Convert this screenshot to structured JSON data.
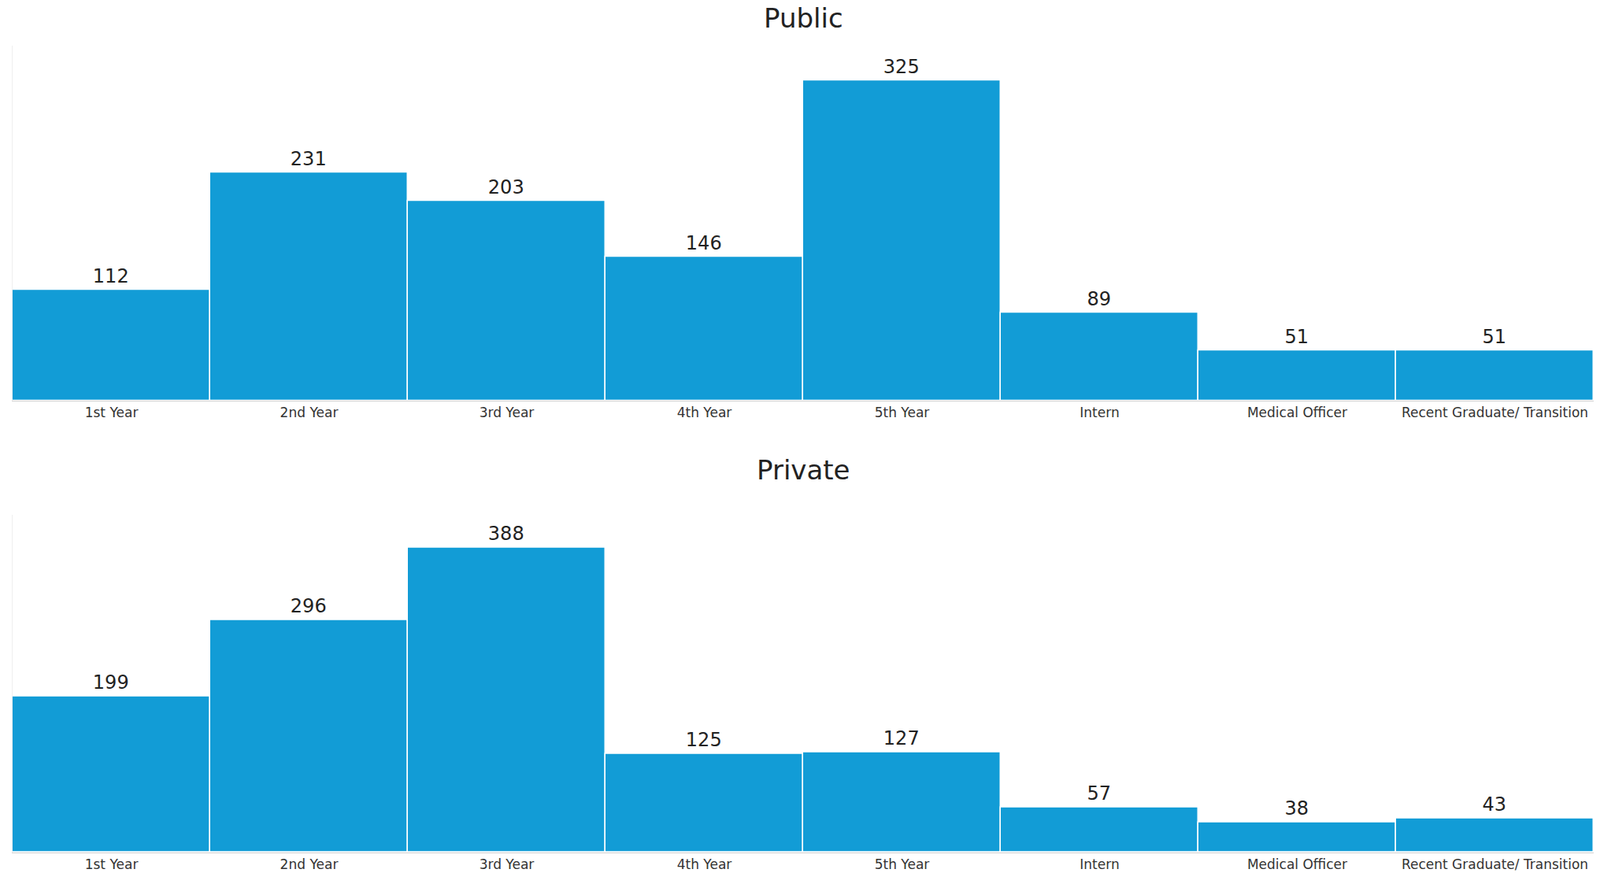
{
  "chart_data": [
    {
      "type": "bar",
      "title": "Public",
      "categories": [
        "1st Year",
        "2nd Year",
        "3rd Year",
        "4th Year",
        "5th Year",
        "Intern",
        "Medical Officer",
        "Recent Graduate/ Transition"
      ],
      "values": [
        112,
        231,
        203,
        146,
        325,
        89,
        51,
        51
      ],
      "color": "#129cd6",
      "ylim": [
        0,
        360
      ],
      "data_labels": true,
      "tick_labels": "x",
      "grid": false
    },
    {
      "type": "bar",
      "title": "Private",
      "categories": [
        "1st Year",
        "2nd Year",
        "3rd Year",
        "4th Year",
        "5th Year",
        "Intern",
        "Medical Officer",
        "Recent Graduate/ Transition"
      ],
      "values": [
        199,
        296,
        388,
        125,
        127,
        57,
        38,
        43
      ],
      "color": "#129cd6",
      "ylim": [
        0,
        430
      ],
      "data_labels": true,
      "tick_labels": "x",
      "grid": false
    }
  ]
}
